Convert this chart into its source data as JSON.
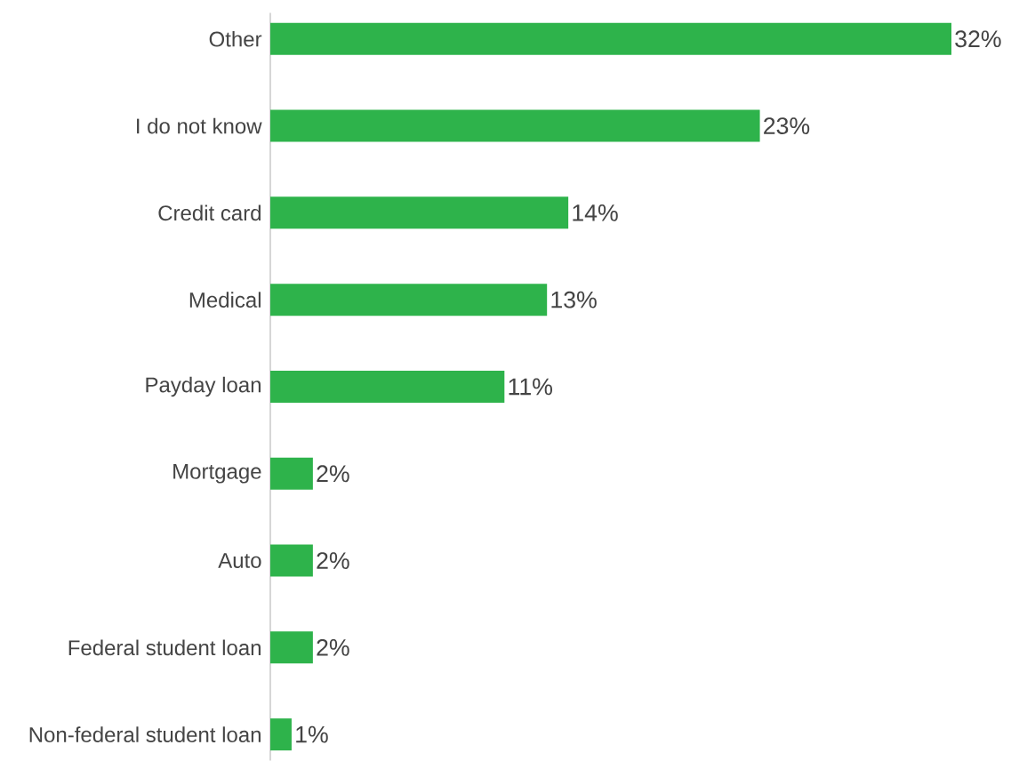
{
  "chart_data": {
    "type": "bar",
    "orientation": "horizontal",
    "categories": [
      "Other",
      "I do not know",
      "Credit card",
      "Medical",
      "Payday loan",
      "Mortgage",
      "Auto",
      "Federal student loan",
      "Non-federal student loan"
    ],
    "values": [
      32,
      23,
      14,
      13,
      11,
      2,
      2,
      2,
      1
    ],
    "value_labels": [
      "32%",
      "23%",
      "14%",
      "13%",
      "11%",
      "2%",
      "2%",
      "2%",
      "1%"
    ],
    "color": "#2eb34b"
  }
}
